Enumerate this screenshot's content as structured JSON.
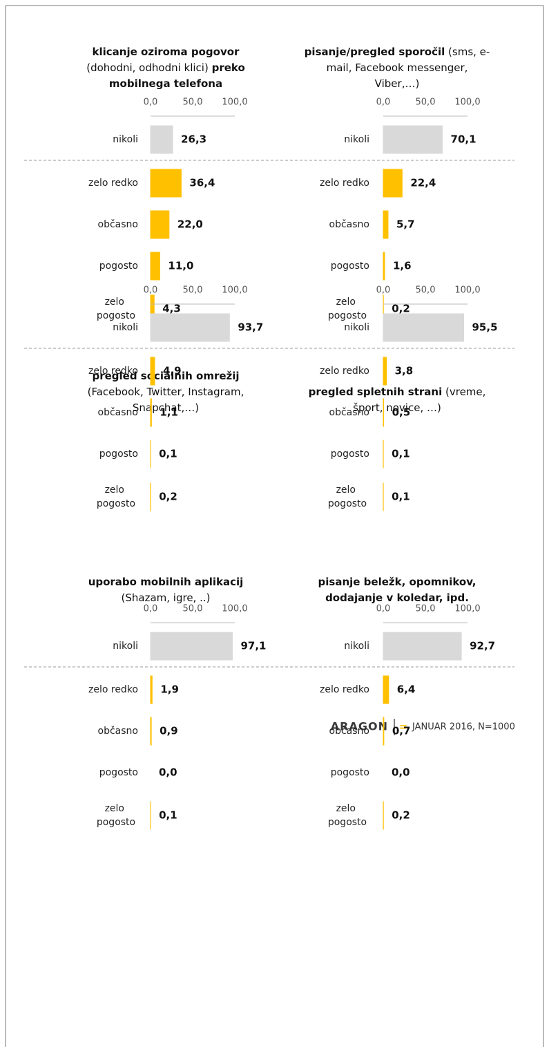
{
  "chart_data": [
    {
      "type": "bar",
      "orientation": "horizontal",
      "title": [
        [
          {
            "text": "klicanje oziroma pogovor",
            "bold": true
          }
        ],
        [
          {
            "text": "(dohodni, odhodni klici) ",
            "bold": false
          },
          {
            "text": "preko",
            "bold": true
          }
        ],
        [
          {
            "text": "mobilnega telefona",
            "bold": true
          }
        ]
      ],
      "categories": [
        "nikoli",
        "zelo redko",
        "občasno",
        "pogosto",
        "zelo pogosto"
      ],
      "values": [
        26.3,
        36.4,
        22.0,
        11.0,
        4.3
      ],
      "value_labels": [
        "26,3",
        "36,4",
        "22,0",
        "11,0",
        "4,3"
      ],
      "colors": [
        "#d9d9d9",
        "#ffc000",
        "#ffc000",
        "#ffc000",
        "#ffc000"
      ],
      "xlim": [
        0,
        100
      ],
      "xticks": [
        {
          "value": 0,
          "label": "0,0"
        },
        {
          "value": 50,
          "label": "50,0"
        },
        {
          "value": 100,
          "label": "100,0"
        }
      ]
    },
    {
      "type": "bar",
      "orientation": "horizontal",
      "title": [
        [
          {
            "text": "pisanje/pregled sporočil",
            "bold": true
          },
          {
            "text": " (sms, e-",
            "bold": false
          }
        ],
        [
          {
            "text": "mail, Facebook messenger,",
            "bold": false
          }
        ],
        [
          {
            "text": "Viber,…)",
            "bold": false
          }
        ]
      ],
      "categories": [
        "nikoli",
        "zelo redko",
        "občasno",
        "pogosto",
        "zelo pogosto"
      ],
      "values": [
        70.1,
        22.4,
        5.7,
        1.6,
        0.2
      ],
      "value_labels": [
        "70,1",
        "22,4",
        "5,7",
        "1,6",
        "0,2"
      ],
      "colors": [
        "#d9d9d9",
        "#ffc000",
        "#ffc000",
        "#ffc000",
        "#ffc000"
      ],
      "xlim": [
        0,
        100
      ],
      "xticks": [
        {
          "value": 0,
          "label": "0,0"
        },
        {
          "value": 50,
          "label": "50,0"
        },
        {
          "value": 100,
          "label": "100,0"
        }
      ]
    },
    {
      "type": "bar",
      "orientation": "horizontal",
      "title": [
        [
          {
            "text": "pregled socialnih omrežij",
            "bold": true
          }
        ],
        [
          {
            "text": "(Facebook, Twitter, Instagram,",
            "bold": false
          }
        ],
        [
          {
            "text": "Snapchat,…)",
            "bold": false
          }
        ]
      ],
      "categories": [
        "nikoli",
        "zelo redko",
        "občasno",
        "pogosto",
        "zelo pogosto"
      ],
      "values": [
        93.7,
        4.9,
        1.1,
        0.1,
        0.2
      ],
      "value_labels": [
        "93,7",
        "4,9",
        "1,1",
        "0,1",
        "0,2"
      ],
      "colors": [
        "#d9d9d9",
        "#ffc000",
        "#ffc000",
        "#ffc000",
        "#ffc000"
      ],
      "xlim": [
        0,
        100
      ],
      "xticks": [
        {
          "value": 0,
          "label": "0,0"
        },
        {
          "value": 50,
          "label": "50,0"
        },
        {
          "value": 100,
          "label": "100,0"
        }
      ]
    },
    {
      "type": "bar",
      "orientation": "horizontal",
      "title": [
        [
          {
            "text": "pregled spletnih strani",
            "bold": true
          },
          {
            "text": " (vreme,",
            "bold": false
          }
        ],
        [
          {
            "text": "šport, novice, …)",
            "bold": false
          }
        ]
      ],
      "categories": [
        "nikoli",
        "zelo redko",
        "občasno",
        "pogosto",
        "zelo pogosto"
      ],
      "values": [
        95.5,
        3.8,
        0.5,
        0.1,
        0.1
      ],
      "value_labels": [
        "95,5",
        "3,8",
        "0,5",
        "0,1",
        "0,1"
      ],
      "colors": [
        "#d9d9d9",
        "#ffc000",
        "#ffc000",
        "#ffc000",
        "#ffc000"
      ],
      "xlim": [
        0,
        100
      ],
      "xticks": [
        {
          "value": 0,
          "label": "0,0"
        },
        {
          "value": 50,
          "label": "50,0"
        },
        {
          "value": 100,
          "label": "100,0"
        }
      ]
    },
    {
      "type": "bar",
      "orientation": "horizontal",
      "title": [
        [
          {
            "text": "uporabo mobilnih aplikacij",
            "bold": true
          }
        ],
        [
          {
            "text": "(Shazam, igre, ..)",
            "bold": false
          }
        ]
      ],
      "categories": [
        "nikoli",
        "zelo redko",
        "občasno",
        "pogosto",
        "zelo pogosto"
      ],
      "values": [
        97.1,
        1.9,
        0.9,
        0.0,
        0.1
      ],
      "value_labels": [
        "97,1",
        "1,9",
        "0,9",
        "0,0",
        "0,1"
      ],
      "colors": [
        "#d9d9d9",
        "#ffc000",
        "#ffc000",
        "#ffc000",
        "#ffc000"
      ],
      "xlim": [
        0,
        100
      ],
      "xticks": [
        {
          "value": 0,
          "label": "0,0"
        },
        {
          "value": 50,
          "label": "50,0"
        },
        {
          "value": 100,
          "label": "100,0"
        }
      ]
    },
    {
      "type": "bar",
      "orientation": "horizontal",
      "title": [
        [
          {
            "text": "pisanje beležk, opomnikov,",
            "bold": true
          }
        ],
        [
          {
            "text": "dodajanje v koledar, ipd.",
            "bold": true
          }
        ]
      ],
      "categories": [
        "nikoli",
        "zelo redko",
        "občasno",
        "pogosto",
        "zelo pogosto"
      ],
      "values": [
        92.7,
        6.4,
        0.7,
        0.0,
        0.2
      ],
      "value_labels": [
        "92,7",
        "6,4",
        "0,7",
        "0,0",
        "0,2"
      ],
      "colors": [
        "#d9d9d9",
        "#ffc000",
        "#ffc000",
        "#ffc000",
        "#ffc000"
      ],
      "xlim": [
        0,
        100
      ],
      "xticks": [
        {
          "value": 0,
          "label": "0,0"
        },
        {
          "value": 50,
          "label": "50,0"
        },
        {
          "value": 100,
          "label": "100,0"
        }
      ]
    }
  ],
  "footer": {
    "brand": "ARAGON",
    "symbol": "=",
    "note": "JANUAR 2016, N=1000"
  }
}
